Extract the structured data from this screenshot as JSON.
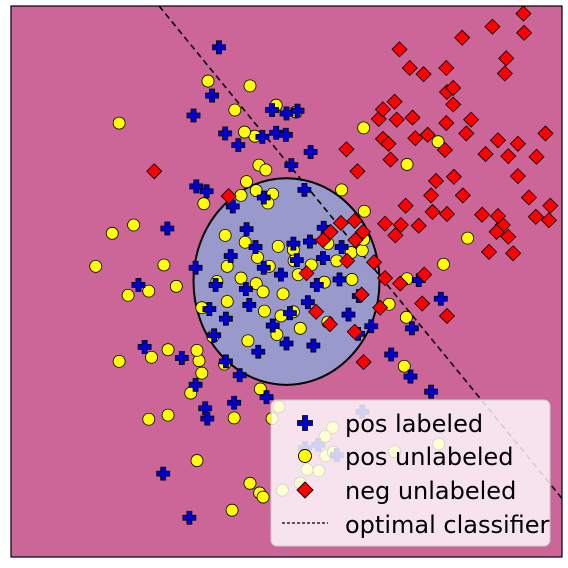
{
  "chart_data": {
    "type": "scatter",
    "title": "",
    "xlabel": "",
    "ylabel": "",
    "xlim": [
      -4,
      4
    ],
    "ylim": [
      -4,
      4
    ],
    "grid": false,
    "axes_ticks": false,
    "legend_placement": "lower-right",
    "colors": {
      "background": "#cc6699",
      "region_fill": "#9999cc",
      "pos_labeled": "#0000cc",
      "pos_unlabeled": "#ffff00",
      "neg_unlabeled": "#ff0000",
      "boundary": "#000000"
    },
    "region": {
      "shape": "ellipse",
      "center": [
        0,
        0
      ],
      "rx": 1.35,
      "ry": 1.5
    },
    "optimal_classifier": {
      "style": "dashed",
      "points": [
        [
          -1.85,
          4.0
        ],
        [
          4.0,
          -3.15
        ]
      ]
    },
    "legend": [
      {
        "label": "pos labeled",
        "marker": "plus",
        "color": "#0000cc"
      },
      {
        "label": "pos unlabeled",
        "marker": "circle",
        "color": "#ffff00"
      },
      {
        "label": "neg unlabeled",
        "marker": "diamond",
        "color": "#ff0000"
      },
      {
        "label": "optimal classifier",
        "marker": "dashed-line",
        "color": "#000000"
      }
    ],
    "series": [
      {
        "name": "pos labeled",
        "marker": "plus",
        "points": [
          [
            -0.98,
            3.4
          ],
          [
            -1.73,
            0.77
          ],
          [
            -1.31,
            1.38
          ],
          [
            -1.16,
            1.31
          ],
          [
            -0.78,
            1.09
          ],
          [
            -0.33,
            1.22
          ],
          [
            0.07,
            1.69
          ],
          [
            0.26,
            1.33
          ],
          [
            0.54,
            0.78
          ],
          [
            0.1,
            0.55
          ],
          [
            -0.45,
            0.5
          ],
          [
            -0.58,
            0.76
          ],
          [
            -0.81,
            0.37
          ],
          [
            -1.32,
            0.2
          ],
          [
            -1.03,
            -0.05
          ],
          [
            -0.59,
            -0.11
          ],
          [
            -0.33,
            0.2
          ],
          [
            -0.08,
            0.1
          ],
          [
            0.34,
            0.58
          ],
          [
            0.15,
            0.31
          ],
          [
            0.44,
            -0.05
          ],
          [
            0.31,
            -0.3
          ],
          [
            0.05,
            -0.46
          ],
          [
            -0.2,
            -0.64
          ],
          [
            -0.54,
            -0.34
          ],
          [
            -0.88,
            -0.54
          ],
          [
            -1.12,
            -0.4
          ],
          [
            -1.05,
            -0.78
          ],
          [
            -0.88,
            -1.16
          ],
          [
            -0.68,
            -1.36
          ],
          [
            -0.41,
            -1.02
          ],
          [
            0.0,
            -0.9
          ],
          [
            0.39,
            -0.93
          ],
          [
            0.9,
            -0.48
          ],
          [
            1.04,
            -0.76
          ],
          [
            1.23,
            -0.65
          ],
          [
            1.05,
            -0.21
          ],
          [
            0.77,
            0.03
          ],
          [
            0.53,
            0.34
          ],
          [
            0.8,
            0.5
          ],
          [
            -2.15,
            -0.05
          ],
          [
            -2.06,
            -0.95
          ],
          [
            -1.52,
            -1.11
          ],
          [
            -1.32,
            -1.5
          ],
          [
            -1.18,
            -1.84
          ],
          [
            -1.15,
            -1.99
          ],
          [
            -0.76,
            -1.76
          ],
          [
            -0.29,
            -1.68
          ],
          [
            1.1,
            -1.89
          ],
          [
            0.46,
            -2.37
          ],
          [
            0.27,
            -2.42
          ],
          [
            1.52,
            -1.06
          ],
          [
            1.8,
            -1.38
          ],
          [
            2.1,
            -1.6
          ],
          [
            2.24,
            -0.25
          ],
          [
            1.92,
            0.02
          ],
          [
            0.73,
            -2.52
          ],
          [
            -1.79,
            -2.79
          ],
          [
            -1.41,
            -3.43
          ],
          [
            -0.7,
            1.98
          ],
          [
            -0.15,
            2.16
          ],
          [
            0.16,
            2.48
          ],
          [
            -0.21,
            2.49
          ],
          [
            -0.89,
            2.15
          ],
          [
            -1.35,
            2.41
          ],
          [
            -1.08,
            2.7
          ],
          [
            0.0,
            2.44
          ],
          [
            -0.01,
            2.13
          ],
          [
            0.35,
            1.88
          ],
          [
            -0.35,
            2.1
          ],
          [
            1.82,
            -0.68
          ]
        ]
      },
      {
        "name": "pos unlabeled",
        "marker": "circle",
        "points": [
          [
            -1.14,
            2.91
          ],
          [
            -2.43,
            2.3
          ],
          [
            -0.15,
            2.56
          ],
          [
            -0.46,
            2.11
          ],
          [
            -0.4,
            1.69
          ],
          [
            -0.44,
            1.32
          ],
          [
            -0.58,
            1.45
          ],
          [
            -0.2,
            1.27
          ],
          [
            -0.66,
            1.25
          ],
          [
            -1.2,
            1.13
          ],
          [
            -0.89,
            0.67
          ],
          [
            -0.86,
            0.22
          ],
          [
            -0.42,
            0.35
          ],
          [
            -0.6,
            0.57
          ],
          [
            -0.44,
            -0.03
          ],
          [
            -0.66,
            0.05
          ],
          [
            -0.34,
            -0.15
          ],
          [
            -0.25,
            0.22
          ],
          [
            -0.12,
            0.51
          ],
          [
            0.1,
            0.46
          ],
          [
            0.17,
            0.1
          ],
          [
            -0.05,
            -0.18
          ],
          [
            0.36,
            0.24
          ],
          [
            0.55,
            -0.01
          ],
          [
            0.73,
            0.3
          ],
          [
            0.6,
            0.55
          ],
          [
            0.94,
            0.42
          ],
          [
            0.95,
            0.03
          ],
          [
            1.1,
            0.45
          ],
          [
            0.6,
            -0.59
          ],
          [
            0.2,
            -0.68
          ],
          [
            0.1,
            -0.44
          ],
          [
            -0.14,
            -0.77
          ],
          [
            -0.08,
            -0.5
          ],
          [
            -0.32,
            -0.43
          ],
          [
            -0.56,
            -0.86
          ],
          [
            -0.86,
            -0.29
          ],
          [
            -1.01,
            0.0
          ],
          [
            -1.23,
            -0.38
          ],
          [
            -1.07,
            -0.8
          ],
          [
            -1.27,
            -1.15
          ],
          [
            -1.23,
            -1.33
          ],
          [
            -1.39,
            -1.62
          ],
          [
            -0.76,
            -1.98
          ],
          [
            -0.21,
            -1.99
          ],
          [
            -0.11,
            -1.82
          ],
          [
            -0.38,
            -1.56
          ],
          [
            0.3,
            -2.73
          ],
          [
            0.47,
            -2.75
          ],
          [
            0.57,
            -2.53
          ],
          [
            0.2,
            -2.93
          ],
          [
            -0.06,
            -3.03
          ],
          [
            -0.39,
            -3.07
          ],
          [
            -0.53,
            -2.93
          ],
          [
            -0.9,
            -1.2
          ],
          [
            -1.72,
            -0.99
          ],
          [
            -2.0,
            -0.14
          ],
          [
            -1.96,
            -1.1
          ],
          [
            -2.0,
            -2.0
          ],
          [
            -2.43,
            -1.16
          ],
          [
            -2.22,
            0.82
          ],
          [
            -2.77,
            0.22
          ],
          [
            -2.53,
            0.7
          ],
          [
            -1.78,
            0.24
          ],
          [
            -1.6,
            -0.07
          ],
          [
            -1.3,
            -2.6
          ],
          [
            -1.72,
            -1.94
          ],
          [
            -0.34,
            -3.13
          ],
          [
            -0.79,
            -3.32
          ],
          [
            -2.3,
            -0.2
          ],
          [
            -1.3,
            -1.0
          ],
          [
            1.49,
            -0.33
          ],
          [
            1.74,
            -0.52
          ],
          [
            2.28,
            0.25
          ],
          [
            2.63,
            0.63
          ],
          [
            1.75,
            0.04
          ],
          [
            1.75,
            1.7
          ],
          [
            1.57,
            -2.47
          ],
          [
            2.21,
            -2.36
          ],
          [
            0.68,
            -2.48
          ],
          [
            1.71,
            -1.23
          ],
          [
            0.67,
            -2.12
          ],
          [
            0.56,
            -2.25
          ],
          [
            -0.3,
            1.62
          ],
          [
            -0.75,
            2.49
          ],
          [
            0.14,
            2.46
          ],
          [
            1.12,
            0.61
          ],
          [
            1.13,
            1.02
          ],
          [
            0.8,
            1.33
          ],
          [
            2.2,
            2.03
          ],
          [
            1.12,
            2.23
          ],
          [
            -0.27,
            1.14
          ],
          [
            -0.53,
            2.84
          ],
          [
            -0.61,
            2.17
          ],
          [
            0.11,
            0.3
          ]
        ]
      },
      {
        "name": "neg unlabeled",
        "marker": "diamond",
        "points": [
          [
            3.44,
            3.89
          ],
          [
            2.99,
            3.7
          ],
          [
            3.45,
            3.61
          ],
          [
            2.55,
            3.54
          ],
          [
            3.19,
            3.24
          ],
          [
            3.17,
            3.02
          ],
          [
            1.64,
            3.37
          ],
          [
            1.99,
            3.01
          ],
          [
            2.32,
            3.1
          ],
          [
            1.79,
            3.1
          ],
          [
            2.33,
            2.75
          ],
          [
            2.42,
            2.81
          ],
          [
            2.42,
            2.57
          ],
          [
            1.83,
            2.38
          ],
          [
            1.87,
            2.08
          ],
          [
            2.32,
            2.3
          ],
          [
            2.05,
            2.13
          ],
          [
            1.6,
            2.35
          ],
          [
            1.4,
            2.07
          ],
          [
            1.48,
            2.0
          ],
          [
            1.51,
            1.77
          ],
          [
            1.03,
            1.6
          ],
          [
            0.87,
            1.92
          ],
          [
            1.34,
            2.36
          ],
          [
            1.4,
            2.5
          ],
          [
            1.57,
            2.61
          ],
          [
            2.3,
            1.91
          ],
          [
            2.61,
            2.15
          ],
          [
            2.68,
            2.35
          ],
          [
            2.43,
            1.52
          ],
          [
            2.17,
            1.46
          ],
          [
            2.56,
            1.25
          ],
          [
            2.89,
            1.85
          ],
          [
            3.07,
            2.05
          ],
          [
            3.22,
            1.82
          ],
          [
            3.36,
            2.0
          ],
          [
            3.76,
            2.15
          ],
          [
            3.63,
            1.81
          ],
          [
            3.36,
            1.53
          ],
          [
            3.52,
            1.22
          ],
          [
            3.83,
            1.1
          ],
          [
            3.62,
            0.94
          ],
          [
            3.81,
            0.89
          ],
          [
            3.22,
            0.65
          ],
          [
            3.29,
            0.41
          ],
          [
            3.14,
            0.82
          ],
          [
            3.07,
            0.95
          ],
          [
            3.05,
            0.72
          ],
          [
            2.84,
            0.97
          ],
          [
            2.94,
            0.43
          ],
          [
            2.33,
            0.98
          ],
          [
            2.12,
            1.01
          ],
          [
            2.1,
            1.25
          ],
          [
            1.92,
            0.81
          ],
          [
            1.73,
            1.1
          ],
          [
            1.66,
            0.82
          ],
          [
            1.43,
            0.84
          ],
          [
            1.11,
            0.72
          ],
          [
            0.99,
            0.88
          ],
          [
            0.79,
            0.85
          ],
          [
            0.64,
            0.72
          ],
          [
            0.53,
            0.6
          ],
          [
            0.88,
            0.3
          ],
          [
            1.27,
            0.28
          ],
          [
            1.58,
            0.67
          ],
          [
            1.97,
            -0.32
          ],
          [
            1.36,
            -0.38
          ],
          [
            1.09,
            -0.19
          ],
          [
            0.99,
            -0.73
          ],
          [
            1.65,
            -0.03
          ],
          [
            2.33,
            -0.5
          ],
          [
            1.43,
            0.05
          ],
          [
            0.29,
            0.12
          ],
          [
            0.43,
            -0.44
          ],
          [
            2.0,
            0.1
          ],
          [
            -1.92,
            1.6
          ],
          [
            -0.84,
            1.24
          ],
          [
            0.63,
            -0.62
          ],
          [
            1.12,
            -1.17
          ],
          [
            1.0,
            0.6
          ]
        ]
      }
    ]
  }
}
